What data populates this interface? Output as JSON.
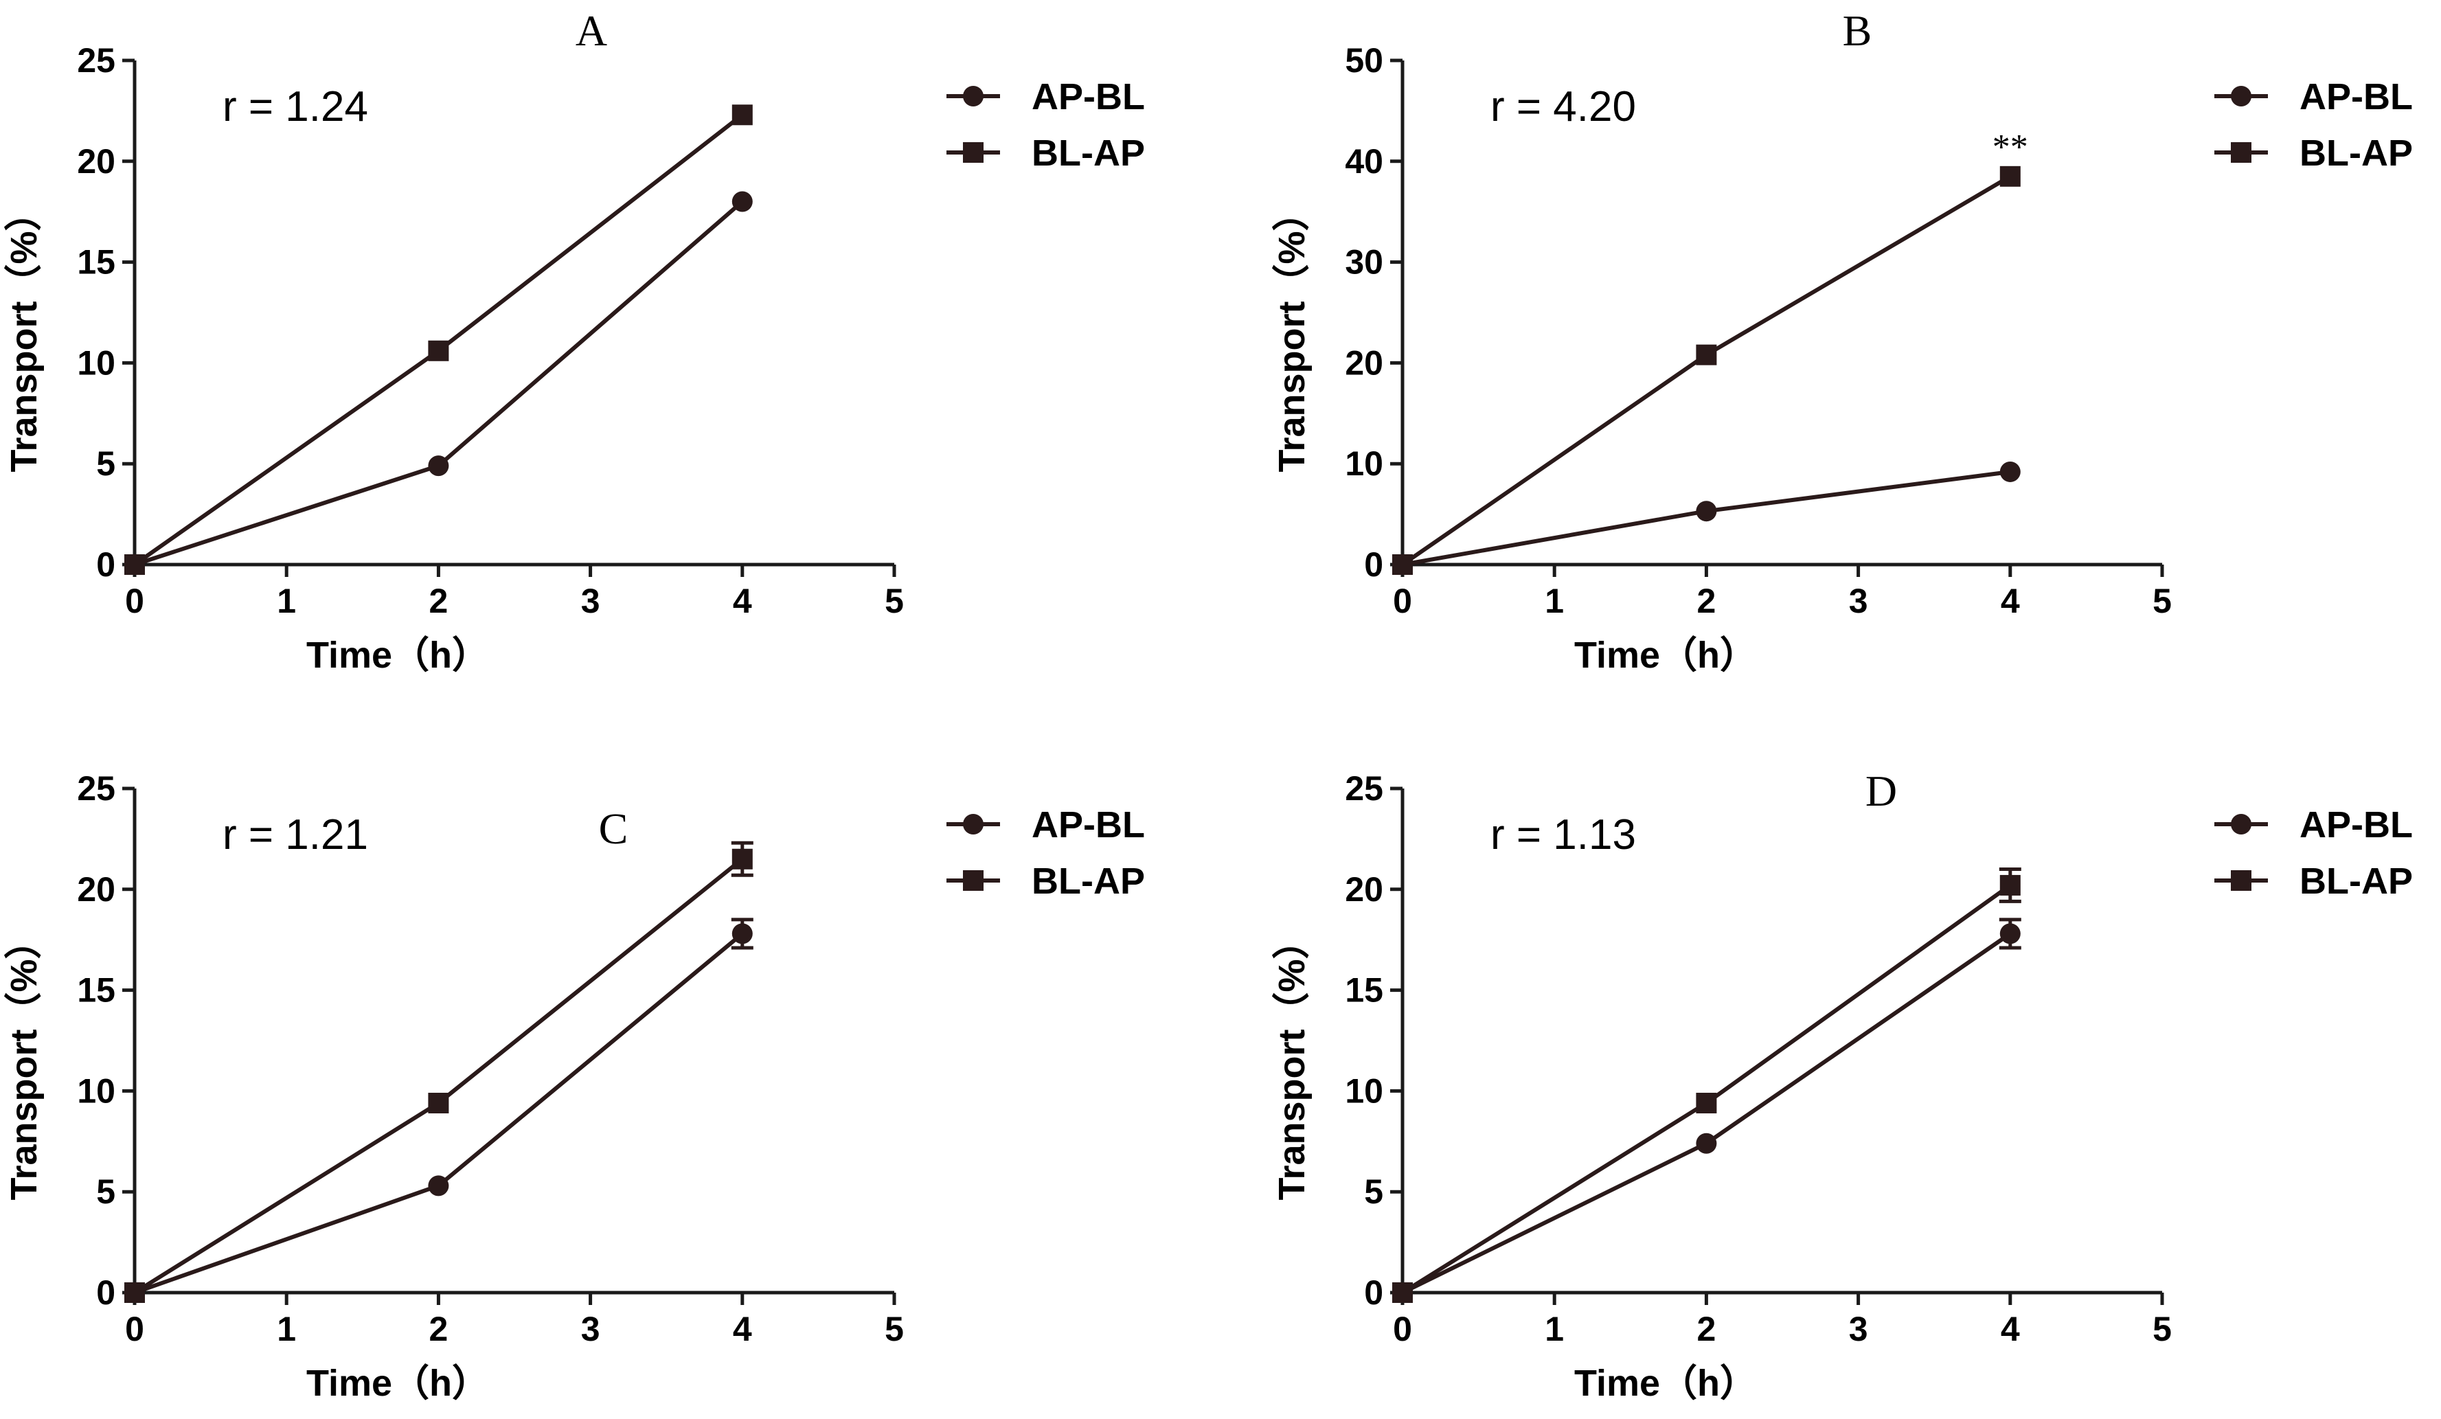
{
  "figure": {
    "colors": {
      "line": "#2a1a1a",
      "marker": "#2a1a1a",
      "axis": "#1a1a1a",
      "background": "#ffffff"
    }
  },
  "chart_data": [
    {
      "type": "line",
      "panel_label": "A",
      "annotation": "r = 1.24",
      "significance": "",
      "xlabel": "Time（h）",
      "ylabel": "Transport（%）",
      "xlim": [
        0,
        5
      ],
      "ylim": [
        0,
        25
      ],
      "xticks": [
        0,
        1,
        2,
        3,
        4,
        5
      ],
      "yticks": [
        0,
        5,
        10,
        15,
        20,
        25
      ],
      "legend_position": "right",
      "series": [
        {
          "name": "AP-BL",
          "marker": "circle",
          "x": [
            0,
            2,
            4
          ],
          "y": [
            0,
            4.9,
            18.0
          ],
          "err": [
            0,
            0,
            0
          ]
        },
        {
          "name": "BL-AP",
          "marker": "square",
          "x": [
            0,
            2,
            4
          ],
          "y": [
            0,
            10.6,
            22.3
          ],
          "err": [
            0,
            0,
            0
          ]
        }
      ]
    },
    {
      "type": "line",
      "panel_label": "B",
      "annotation": "r = 4.20",
      "significance": "**",
      "xlabel": "Time（h）",
      "ylabel": "Transport（%）",
      "xlim": [
        0,
        5
      ],
      "ylim": [
        0,
        50
      ],
      "xticks": [
        0,
        1,
        2,
        3,
        4,
        5
      ],
      "yticks": [
        0,
        10,
        20,
        30,
        40,
        50
      ],
      "legend_position": "right",
      "series": [
        {
          "name": "AP-BL",
          "marker": "circle",
          "x": [
            0,
            2,
            4
          ],
          "y": [
            0,
            5.3,
            9.2
          ],
          "err": [
            0,
            0,
            0
          ]
        },
        {
          "name": "BL-AP",
          "marker": "square",
          "x": [
            0,
            2,
            4
          ],
          "y": [
            0,
            20.8,
            38.5
          ],
          "err": [
            0,
            0,
            0
          ]
        }
      ]
    },
    {
      "type": "line",
      "panel_label": "C",
      "annotation": "r = 1.21",
      "significance": "",
      "xlabel": "Time（h）",
      "ylabel": "Transport（%）",
      "xlim": [
        0,
        5
      ],
      "ylim": [
        0,
        25
      ],
      "xticks": [
        0,
        1,
        2,
        3,
        4,
        5
      ],
      "yticks": [
        0,
        5,
        10,
        15,
        20,
        25
      ],
      "legend_position": "right",
      "series": [
        {
          "name": "AP-BL",
          "marker": "circle",
          "x": [
            0,
            2,
            4
          ],
          "y": [
            0,
            5.3,
            17.8
          ],
          "err": [
            0,
            0,
            0.7
          ]
        },
        {
          "name": "BL-AP",
          "marker": "square",
          "x": [
            0,
            2,
            4
          ],
          "y": [
            0,
            9.4,
            21.5
          ],
          "err": [
            0,
            0,
            0.8
          ]
        }
      ]
    },
    {
      "type": "line",
      "panel_label": "D",
      "annotation": "r = 1.13",
      "significance": "",
      "xlabel": "Time（h）",
      "ylabel": "Transport（%）",
      "xlim": [
        0,
        5
      ],
      "ylim": [
        0,
        25
      ],
      "xticks": [
        0,
        1,
        2,
        3,
        4,
        5
      ],
      "yticks": [
        0,
        5,
        10,
        15,
        20,
        25
      ],
      "legend_position": "right",
      "series": [
        {
          "name": "AP-BL",
          "marker": "circle",
          "x": [
            0,
            2,
            4
          ],
          "y": [
            0,
            7.4,
            17.8
          ],
          "err": [
            0,
            0,
            0.7
          ]
        },
        {
          "name": "BL-AP",
          "marker": "square",
          "x": [
            0,
            2,
            4
          ],
          "y": [
            0,
            9.4,
            20.2
          ],
          "err": [
            0,
            0,
            0.8
          ]
        }
      ]
    }
  ]
}
